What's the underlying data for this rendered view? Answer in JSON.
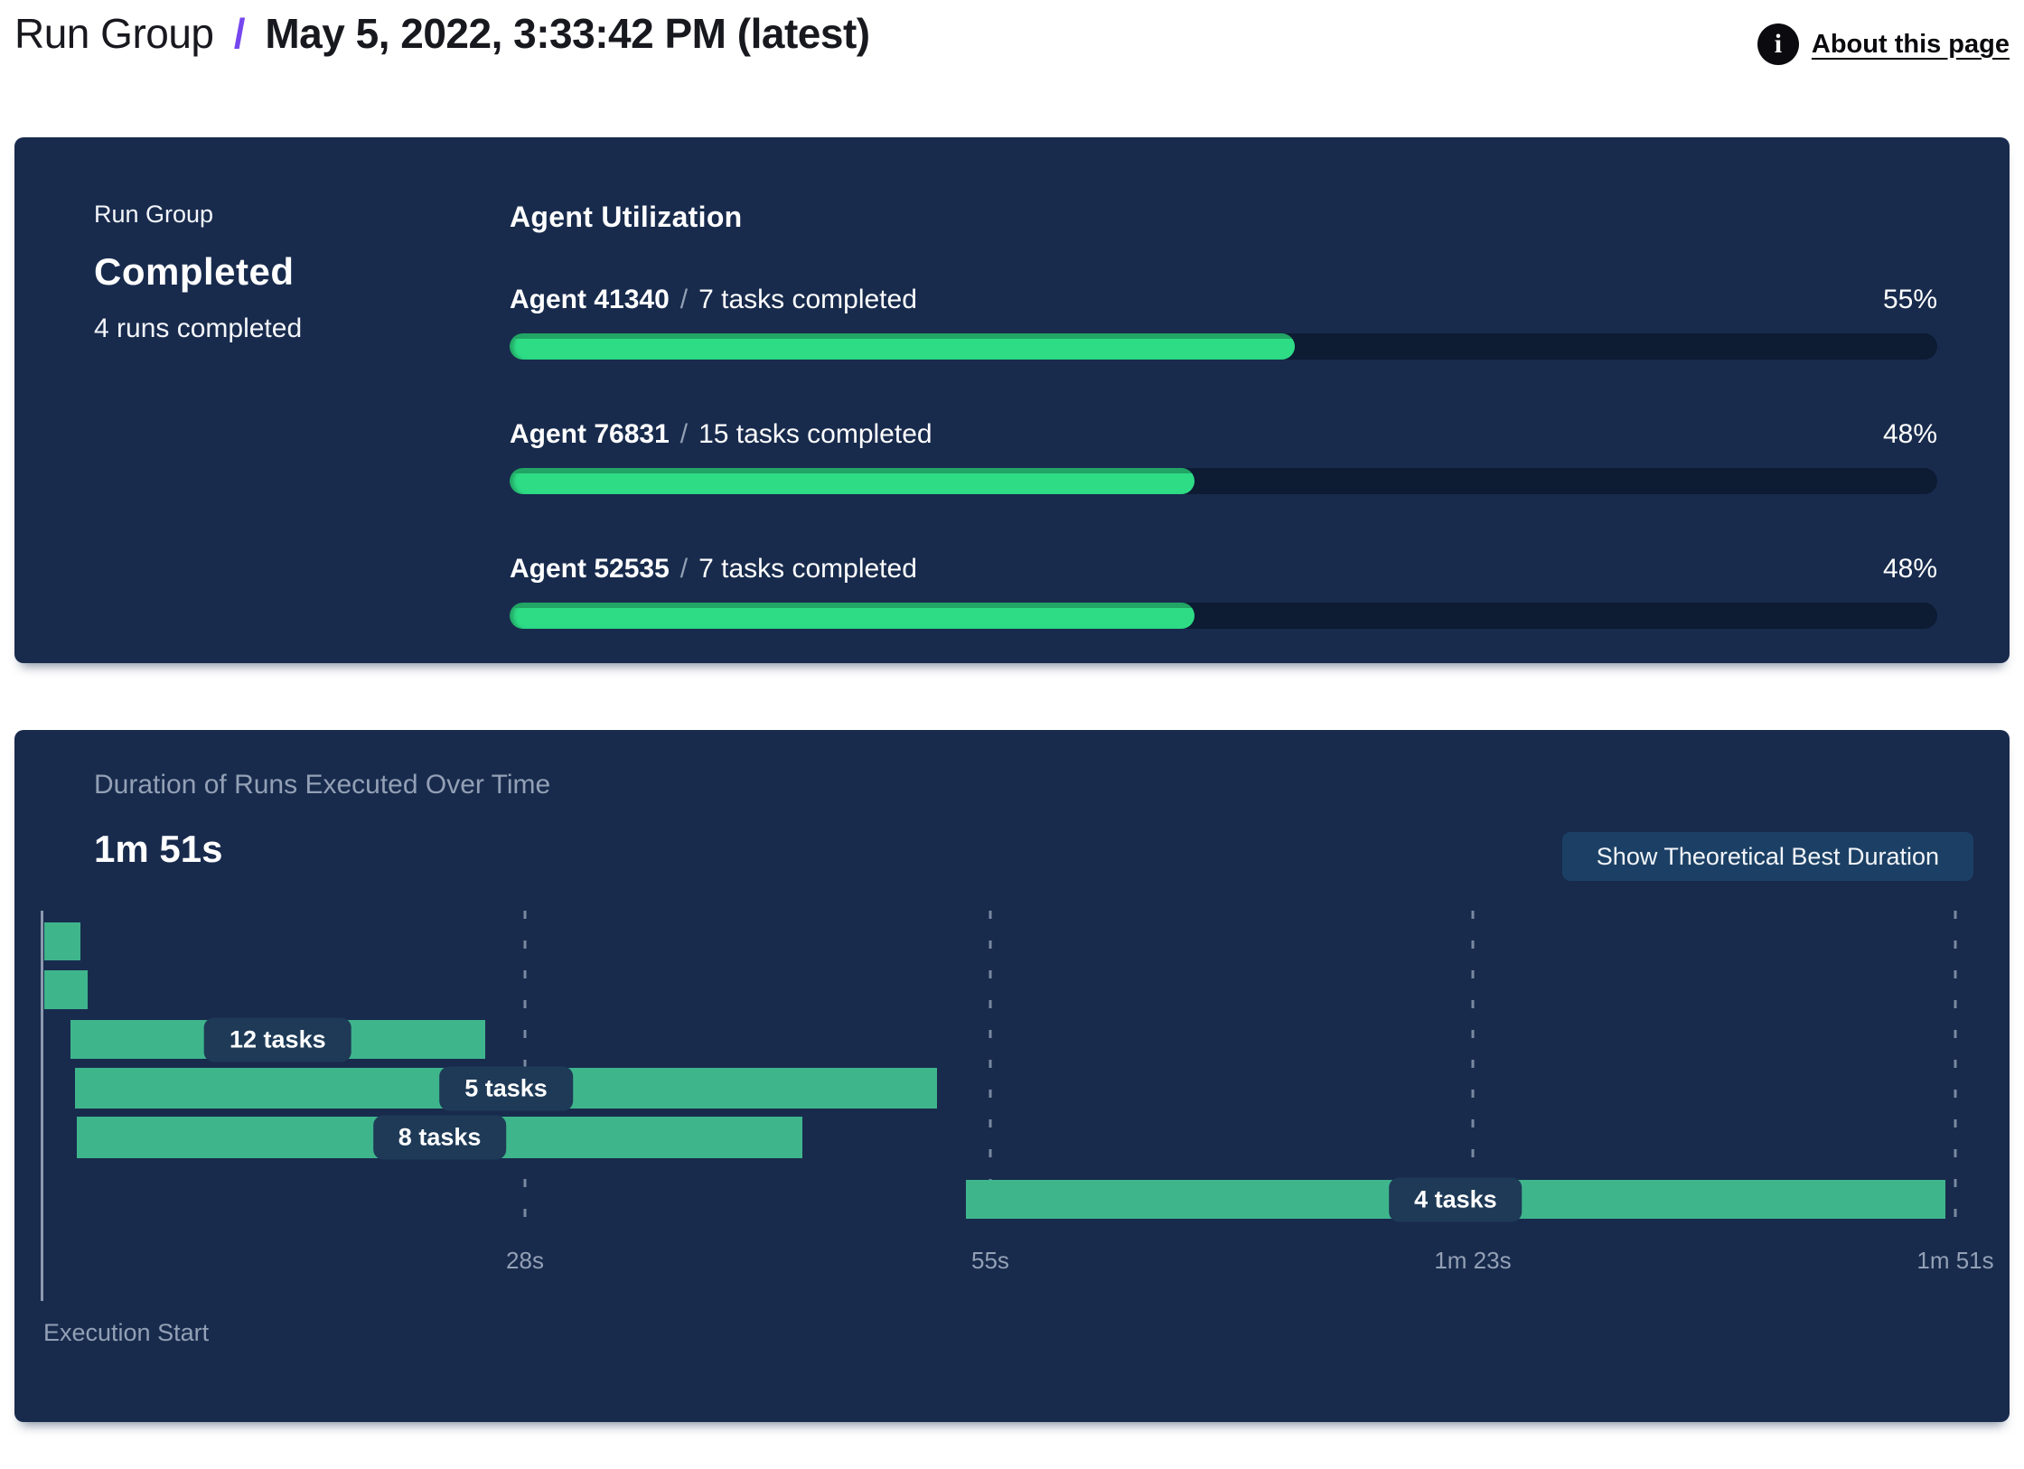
{
  "header": {
    "breadcrumb_root": "Run Group",
    "separator": "/",
    "title": "May 5, 2022, 3:33:42 PM (latest)",
    "about_link": "About this page",
    "info_icon": "i"
  },
  "summary_card": {
    "label": "Run Group",
    "status": "Completed",
    "subtext": "4 runs completed"
  },
  "agent_utilization": {
    "title": "Agent Utilization",
    "separator": "/",
    "agents": [
      {
        "name": "Agent 41340",
        "tasks": "7 tasks completed",
        "percent": 55,
        "percent_label": "55%"
      },
      {
        "name": "Agent 76831",
        "tasks": "15 tasks completed",
        "percent": 48,
        "percent_label": "48%"
      },
      {
        "name": "Agent 52535",
        "tasks": "7 tasks completed",
        "percent": 48,
        "percent_label": "48%"
      }
    ]
  },
  "duration_card": {
    "title": "Duration of Runs Executed Over Time",
    "total_duration": "1m 51s",
    "button_label": "Show Theoretical Best Duration",
    "axis_caption": "Execution Start"
  },
  "chart_data": {
    "type": "gantt",
    "title": "Duration of Runs Executed Over Time",
    "total_duration_label": "1m 51s",
    "x_unit": "seconds",
    "axis_range": [
      0,
      111
    ],
    "grid": true,
    "ticks": [
      {
        "label": "28s",
        "seconds": 28
      },
      {
        "label": "55s",
        "seconds": 55
      },
      {
        "label": "1m 23s",
        "seconds": 83
      },
      {
        "label": "1m 51s",
        "seconds": 111
      }
    ],
    "bars": [
      {
        "label": null,
        "start_s": 0.1,
        "end_s": 2.2
      },
      {
        "label": null,
        "start_s": 0.1,
        "end_s": 2.6
      },
      {
        "label": "12 tasks",
        "start_s": 1.6,
        "end_s": 25.7
      },
      {
        "label": "5 tasks",
        "start_s": 1.9,
        "end_s": 51.9
      },
      {
        "label": "8 tasks",
        "start_s": 2.0,
        "end_s": 44.1
      },
      {
        "label": "4 tasks",
        "start_s": 53.6,
        "end_s": 110.4
      }
    ],
    "xlabel": "Execution Start",
    "colors": {
      "card_background": "#182b4d",
      "progress_green": "#2edc86",
      "progress_green_dark": "#22a565",
      "progress_track": "#0d1b33",
      "gantt_bar_green": "#3fb58c",
      "pill_background": "#1e3a57",
      "button_background": "#1c4065",
      "muted_text": "#93a0b5",
      "accent_purple": "#7646ef"
    }
  }
}
